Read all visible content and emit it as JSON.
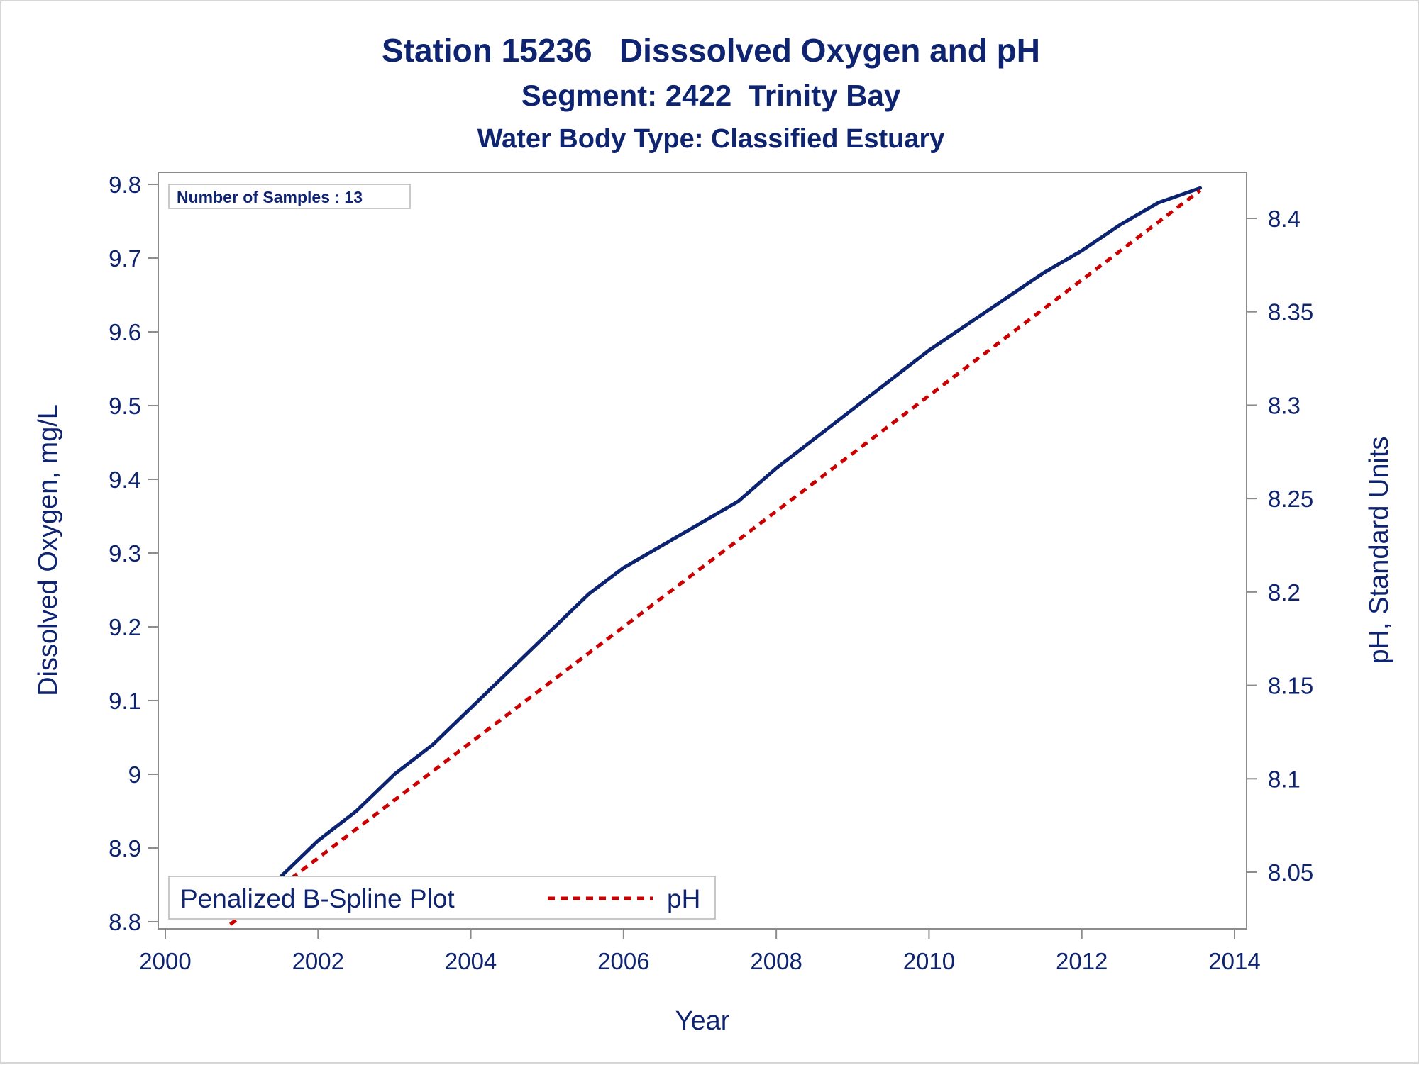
{
  "colors": {
    "text": "#0f2470",
    "axis": "#8c8c8c",
    "dissolved_oxygen": "#0b2370",
    "ph": "#cc0000",
    "background": "#ffffff"
  },
  "chart_data": {
    "type": "line",
    "title": "Station 15236   Disssolved Oxygen and pH",
    "subtitles": [
      "Segment: 2422  Trinity Bay",
      "Water Body Type: Classified Estuary"
    ],
    "xlabel": "Year",
    "ylabel_left": "Dissolved Oxygen, mg/L",
    "ylabel_right": "pH, Standard Units",
    "xlim": [
      2000,
      2014
    ],
    "ylim_left": [
      8.79,
      9.81
    ],
    "ylim_right": [
      8.02,
      8.425
    ],
    "x_ticks": [
      "2000",
      "2002",
      "2004",
      "2006",
      "2008",
      "2010",
      "2012",
      "2014"
    ],
    "y_left_ticks": [
      "8.8",
      "8.9",
      "9",
      "9.1",
      "9.2",
      "9.3",
      "9.4",
      "9.5",
      "9.6",
      "9.7",
      "9.8"
    ],
    "y_right_ticks": [
      "8.05",
      "8.1",
      "8.15",
      "8.2",
      "8.25",
      "8.3",
      "8.35",
      "8.4"
    ],
    "grid": false,
    "annotation": "Number of Samples : 13",
    "legend": {
      "position": "bottom-left",
      "title": "Penalized B-Spline Plot",
      "entries": [
        "pH"
      ]
    },
    "series": [
      {
        "axis": "left",
        "style": "solid",
        "x": [
          2000.85,
          2001.5,
          2002.0,
          2002.5,
          2003.0,
          2003.5,
          2004.0,
          2004.5,
          2005.0,
          2005.3,
          2005.55,
          2006.0,
          2006.5,
          2007.0,
          2007.5,
          2008.0,
          2008.5,
          2009.0,
          2009.5,
          2010.0,
          2010.5,
          2011.0,
          2011.5,
          2012.0,
          2012.5,
          2013.0,
          2013.55
        ],
        "values": [
          8.82,
          8.86,
          8.91,
          8.95,
          9.0,
          9.04,
          9.09,
          9.14,
          9.19,
          9.22,
          9.245,
          9.28,
          9.31,
          9.34,
          9.37,
          9.415,
          9.455,
          9.495,
          9.535,
          9.575,
          9.61,
          9.645,
          9.68,
          9.71,
          9.745,
          9.775,
          9.795
        ]
      },
      {
        "name": "pH",
        "axis": "right",
        "style": "dashed",
        "x": [
          2000.85,
          2013.55
        ],
        "values": [
          8.022,
          8.415
        ]
      }
    ]
  }
}
